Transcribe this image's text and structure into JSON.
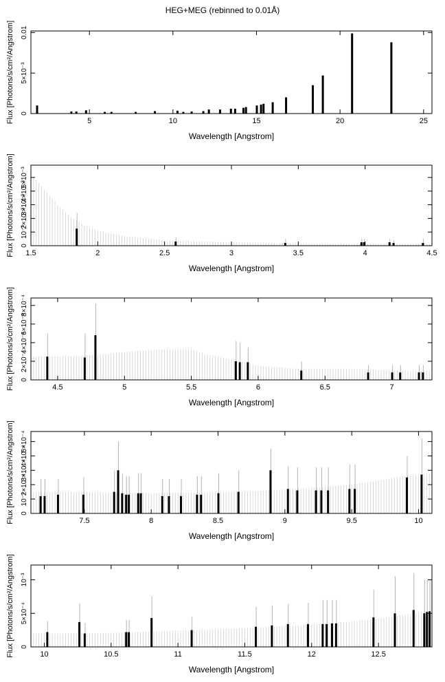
{
  "title": "HEG+MEG (rebinned to 0.01Å)",
  "colors": {
    "axis": "#000000",
    "error_bar": "#c8c8c8",
    "data_bar": "#000000",
    "background": "#ffffff"
  },
  "chart_data": [
    {
      "type": "bar",
      "xlabel": "Wavelength [Angstrom]",
      "ylabel": "Flux [Photons/s/cm²/Angstrom]",
      "xlim": [
        1.5,
        25.5
      ],
      "ylim": [
        0,
        0.0102
      ],
      "xticks": [
        {
          "v": 5,
          "label": "5"
        },
        {
          "v": 10,
          "label": "10"
        },
        {
          "v": 15,
          "label": "15"
        },
        {
          "v": 20,
          "label": "20"
        },
        {
          "v": 25,
          "label": "25"
        }
      ],
      "yticks": [
        {
          "v": 0,
          "label": "0"
        },
        {
          "v": 0.005,
          "label": "5×10⁻³"
        },
        {
          "v": 0.01,
          "label": "0.01"
        }
      ],
      "error_band": [],
      "bars": [
        {
          "x": 1.85,
          "y": 0.001
        },
        {
          "x": 3.9,
          "y": 0.00025
        },
        {
          "x": 4.2,
          "y": 0.00025
        },
        {
          "x": 4.78,
          "y": 0.0004
        },
        {
          "x": 5.9,
          "y": 0.0002
        },
        {
          "x": 6.3,
          "y": 0.0002
        },
        {
          "x": 7.75,
          "y": 0.0002
        },
        {
          "x": 8.9,
          "y": 0.0003
        },
        {
          "x": 10.25,
          "y": 0.00035
        },
        {
          "x": 10.6,
          "y": 0.0002
        },
        {
          "x": 11.1,
          "y": 0.00025
        },
        {
          "x": 11.8,
          "y": 0.0003
        },
        {
          "x": 12.13,
          "y": 0.0005
        },
        {
          "x": 12.8,
          "y": 0.0005
        },
        {
          "x": 13.45,
          "y": 0.0006
        },
        {
          "x": 13.7,
          "y": 0.0006
        },
        {
          "x": 14.2,
          "y": 0.0007
        },
        {
          "x": 14.35,
          "y": 0.0008
        },
        {
          "x": 15.0,
          "y": 0.001
        },
        {
          "x": 15.25,
          "y": 0.0011
        },
        {
          "x": 15.4,
          "y": 0.0012
        },
        {
          "x": 15.95,
          "y": 0.0014
        },
        {
          "x": 16.75,
          "y": 0.002
        },
        {
          "x": 18.35,
          "y": 0.0035
        },
        {
          "x": 18.95,
          "y": 0.0047
        },
        {
          "x": 20.7,
          "y": 0.0099
        },
        {
          "x": 23.05,
          "y": 0.0088
        }
      ]
    },
    {
      "type": "bar",
      "xlabel": "Wavelength [Angstrom]",
      "ylabel": "Flux [Photons/s/cm²/Angstrom]",
      "xlim": [
        1.5,
        4.5
      ],
      "ylim": [
        0,
        0.0059
      ],
      "xticks": [
        {
          "v": 1.5,
          "label": "1.5"
        },
        {
          "v": 2,
          "label": "2"
        },
        {
          "v": 2.5,
          "label": "2.5"
        },
        {
          "v": 3,
          "label": "3"
        },
        {
          "v": 3.5,
          "label": "3.5"
        },
        {
          "v": 4,
          "label": "4"
        },
        {
          "v": 4.5,
          "label": "4.5"
        }
      ],
      "yticks": [
        {
          "v": 0,
          "label": "0"
        },
        {
          "v": 0.001,
          "label": "10⁻³"
        },
        {
          "v": 0.002,
          "label": "2×10⁻³"
        },
        {
          "v": 0.003,
          "label": "3×10⁻³"
        },
        {
          "v": 0.004,
          "label": "4×10⁻³"
        },
        {
          "v": 0.005,
          "label": "5×10⁻³"
        }
      ],
      "error_band": [
        [
          1.5,
          0.0052
        ],
        [
          1.55,
          0.0047
        ],
        [
          1.6,
          0.0041
        ],
        [
          1.7,
          0.003
        ],
        [
          1.8,
          0.0021
        ],
        [
          1.9,
          0.0015
        ],
        [
          2.0,
          0.0011
        ],
        [
          2.2,
          0.0007
        ],
        [
          2.5,
          0.0004
        ],
        [
          3.0,
          0.00025
        ],
        [
          3.5,
          0.00018
        ],
        [
          4.0,
          0.00015
        ],
        [
          4.5,
          0.00015
        ]
      ],
      "bars": [
        {
          "x": 1.84,
          "y": 0.00125,
          "err": 0.0024
        },
        {
          "x": 2.58,
          "y": 0.0003,
          "err": 0.0006
        },
        {
          "x": 3.4,
          "y": 0.0002,
          "err": 0.0005
        },
        {
          "x": 3.97,
          "y": 0.00025,
          "err": 0.0005
        },
        {
          "x": 3.99,
          "y": 0.00025,
          "err": 0.0005
        },
        {
          "x": 4.18,
          "y": 0.00025,
          "err": 0.0005
        },
        {
          "x": 4.21,
          "y": 0.0002,
          "err": 0.0004
        },
        {
          "x": 4.43,
          "y": 0.0002,
          "err": 0.0005
        }
      ]
    },
    {
      "type": "bar",
      "xlabel": "Wavelength [Angstrom]",
      "ylabel": "Flux [Photons/s/cm²/Angstrom]",
      "xlim": [
        4.3,
        7.3
      ],
      "ylim": [
        0,
        0.00088
      ],
      "xticks": [
        {
          "v": 4.5,
          "label": "4.5"
        },
        {
          "v": 5,
          "label": "5"
        },
        {
          "v": 5.5,
          "label": "5.5"
        },
        {
          "v": 6,
          "label": "6"
        },
        {
          "v": 6.5,
          "label": "6.5"
        },
        {
          "v": 7,
          "label": "7"
        }
      ],
      "yticks": [
        {
          "v": 0,
          "label": "0"
        },
        {
          "v": 0.0002,
          "label": "2×10⁻⁴"
        },
        {
          "v": 0.0004,
          "label": "4×10⁻⁴"
        },
        {
          "v": 0.0006,
          "label": "6×10⁻⁴"
        },
        {
          "v": 0.0008,
          "label": "8×10⁻⁴"
        }
      ],
      "error_band": [
        [
          4.3,
          0.00025
        ],
        [
          4.5,
          0.00025
        ],
        [
          4.8,
          0.00027
        ],
        [
          5.0,
          0.0003
        ],
        [
          5.3,
          0.00033
        ],
        [
          5.5,
          0.00033
        ],
        [
          5.6,
          0.00028
        ],
        [
          5.8,
          0.00022
        ],
        [
          6.0,
          0.00015
        ],
        [
          6.3,
          0.00012
        ],
        [
          6.7,
          0.00012
        ],
        [
          7.0,
          0.0001
        ],
        [
          7.3,
          0.0001
        ]
      ],
      "bars": [
        {
          "x": 4.42,
          "y": 0.00025,
          "err": 0.0005
        },
        {
          "x": 4.7,
          "y": 0.00024,
          "err": 0.0005
        },
        {
          "x": 4.78,
          "y": 0.00048,
          "err": 0.00082
        },
        {
          "x": 5.83,
          "y": 0.0002,
          "err": 0.00042
        },
        {
          "x": 5.86,
          "y": 0.00019,
          "err": 0.0004
        },
        {
          "x": 5.92,
          "y": 0.00019,
          "err": 0.00035
        },
        {
          "x": 6.32,
          "y": 0.0001,
          "err": 0.0002
        },
        {
          "x": 6.82,
          "y": 8e-05,
          "err": 0.00016
        },
        {
          "x": 7.0,
          "y": 8e-05,
          "err": 0.00016
        },
        {
          "x": 7.06,
          "y": 8e-05,
          "err": 0.00016
        },
        {
          "x": 7.2,
          "y": 8e-05,
          "err": 0.00016
        },
        {
          "x": 7.23,
          "y": 8e-05,
          "err": 0.00016
        }
      ]
    },
    {
      "type": "bar",
      "xlabel": "Wavelength [Angstrom]",
      "ylabel": "Flux [Photons/s/cm²/Angstrom]",
      "xlim": [
        7.1,
        10.1
      ],
      "ylim": [
        0,
        0.00057
      ],
      "xticks": [
        {
          "v": 7.5,
          "label": "7.5"
        },
        {
          "v": 8,
          "label": "8"
        },
        {
          "v": 8.5,
          "label": "8.5"
        },
        {
          "v": 9,
          "label": "9"
        },
        {
          "v": 9.5,
          "label": "9.5"
        },
        {
          "v": 10,
          "label": "10"
        }
      ],
      "yticks": [
        {
          "v": 0,
          "label": "0"
        },
        {
          "v": 0.0001,
          "label": "10⁻⁴"
        },
        {
          "v": 0.0002,
          "label": "2×10⁻⁴"
        },
        {
          "v": 0.0003,
          "label": "3×10⁻⁴"
        },
        {
          "v": 0.0004,
          "label": "4×10⁻⁴"
        },
        {
          "v": 0.0005,
          "label": "5×10⁻⁴"
        }
      ],
      "error_band": [
        [
          7.1,
          0.00015
        ],
        [
          7.5,
          0.00015
        ],
        [
          8.0,
          0.00014
        ],
        [
          8.5,
          0.00015
        ],
        [
          8.9,
          0.00016
        ],
        [
          9.2,
          0.00018
        ],
        [
          9.5,
          0.0002
        ],
        [
          9.7,
          0.00023
        ],
        [
          9.9,
          0.00026
        ],
        [
          10.1,
          0.00028
        ]
      ],
      "bars": [
        {
          "x": 7.17,
          "y": 0.00012,
          "err": 0.00024
        },
        {
          "x": 7.2,
          "y": 0.00012,
          "err": 0.00024
        },
        {
          "x": 7.3,
          "y": 0.00013,
          "err": 0.00024
        },
        {
          "x": 7.49,
          "y": 0.00013,
          "err": 0.00025
        },
        {
          "x": 7.72,
          "y": 0.00015,
          "err": 0.0003
        },
        {
          "x": 7.75,
          "y": 0.0003,
          "err": 0.0005
        },
        {
          "x": 7.78,
          "y": 0.00014,
          "err": 0.00028
        },
        {
          "x": 7.81,
          "y": 0.00013,
          "err": 0.00026
        },
        {
          "x": 7.83,
          "y": 0.00013,
          "err": 0.00026
        },
        {
          "x": 7.9,
          "y": 0.00014,
          "err": 0.00028
        },
        {
          "x": 7.92,
          "y": 0.00014,
          "err": 0.00028
        },
        {
          "x": 8.08,
          "y": 0.00012,
          "err": 0.00024
        },
        {
          "x": 8.13,
          "y": 0.00012,
          "err": 0.00024
        },
        {
          "x": 8.22,
          "y": 0.00012,
          "err": 0.00024
        },
        {
          "x": 8.34,
          "y": 0.00013,
          "err": 0.00026
        },
        {
          "x": 8.37,
          "y": 0.00013,
          "err": 0.00026
        },
        {
          "x": 8.5,
          "y": 0.00014,
          "err": 0.00028
        },
        {
          "x": 8.65,
          "y": 0.00015,
          "err": 0.0003
        },
        {
          "x": 8.89,
          "y": 0.0003,
          "err": 0.00045
        },
        {
          "x": 9.02,
          "y": 0.00017,
          "err": 0.00033
        },
        {
          "x": 9.09,
          "y": 0.00016,
          "err": 0.00032
        },
        {
          "x": 9.23,
          "y": 0.00016,
          "err": 0.00032
        },
        {
          "x": 9.27,
          "y": 0.00016,
          "err": 0.00032
        },
        {
          "x": 9.32,
          "y": 0.00016,
          "err": 0.00032
        },
        {
          "x": 9.48,
          "y": 0.00017,
          "err": 0.00034
        },
        {
          "x": 9.52,
          "y": 0.00017,
          "err": 0.00034
        },
        {
          "x": 9.91,
          "y": 0.00025,
          "err": 0.0004
        },
        {
          "x": 10.02,
          "y": 0.00027,
          "err": 0.00052
        }
      ]
    },
    {
      "type": "bar",
      "xlabel": "Wavelength [Angstrom]",
      "ylabel": "Flux [Photons/s/cm²/Angstrom]",
      "xlim": [
        9.9,
        12.9
      ],
      "ylim": [
        0,
        0.00122
      ],
      "xticks": [
        {
          "v": 10,
          "label": "10"
        },
        {
          "v": 10.5,
          "label": "10.5"
        },
        {
          "v": 11,
          "label": "11"
        },
        {
          "v": 11.5,
          "label": "11.5"
        },
        {
          "v": 12,
          "label": "12"
        },
        {
          "v": 12.5,
          "label": "12.5"
        }
      ],
      "yticks": [
        {
          "v": 0,
          "label": "0"
        },
        {
          "v": 0.0005,
          "label": "5×10⁻⁴"
        },
        {
          "v": 0.001,
          "label": "10⁻³"
        }
      ],
      "error_band": [
        [
          9.9,
          0.0002
        ],
        [
          10.3,
          0.0002
        ],
        [
          10.7,
          0.00022
        ],
        [
          11.1,
          0.00025
        ],
        [
          11.5,
          0.00028
        ],
        [
          11.9,
          0.00032
        ],
        [
          12.2,
          0.00036
        ],
        [
          12.5,
          0.00042
        ],
        [
          12.7,
          0.00048
        ],
        [
          12.9,
          0.00055
        ]
      ],
      "bars": [
        {
          "x": 10.02,
          "y": 0.00022,
          "err": 0.00038
        },
        {
          "x": 10.26,
          "y": 0.00037,
          "err": 0.00065
        },
        {
          "x": 10.3,
          "y": 0.0002,
          "err": 0.00036
        },
        {
          "x": 10.61,
          "y": 0.00022,
          "err": 0.0004
        },
        {
          "x": 10.63,
          "y": 0.00022,
          "err": 0.0004
        },
        {
          "x": 10.8,
          "y": 0.00043,
          "err": 0.00075
        },
        {
          "x": 11.1,
          "y": 0.00025,
          "err": 0.00045
        },
        {
          "x": 11.58,
          "y": 0.0003,
          "err": 0.0006
        },
        {
          "x": 11.7,
          "y": 0.00032,
          "err": 0.00062
        },
        {
          "x": 11.82,
          "y": 0.00034,
          "err": 0.00064
        },
        {
          "x": 11.97,
          "y": 0.00034,
          "err": 0.00066
        },
        {
          "x": 12.08,
          "y": 0.00034,
          "err": 0.0007
        },
        {
          "x": 12.11,
          "y": 0.00034,
          "err": 0.0007
        },
        {
          "x": 12.15,
          "y": 0.00035,
          "err": 0.0007
        },
        {
          "x": 12.18,
          "y": 0.00035,
          "err": 0.0007
        },
        {
          "x": 12.46,
          "y": 0.00044,
          "err": 0.00085
        },
        {
          "x": 12.62,
          "y": 0.0005,
          "err": 0.00105
        },
        {
          "x": 12.76,
          "y": 0.00055,
          "err": 0.0011
        },
        {
          "x": 12.84,
          "y": 0.0005,
          "err": 0.001
        },
        {
          "x": 12.86,
          "y": 0.00052,
          "err": 0.001
        },
        {
          "x": 12.88,
          "y": 0.00053,
          "err": 0.001
        }
      ]
    }
  ]
}
